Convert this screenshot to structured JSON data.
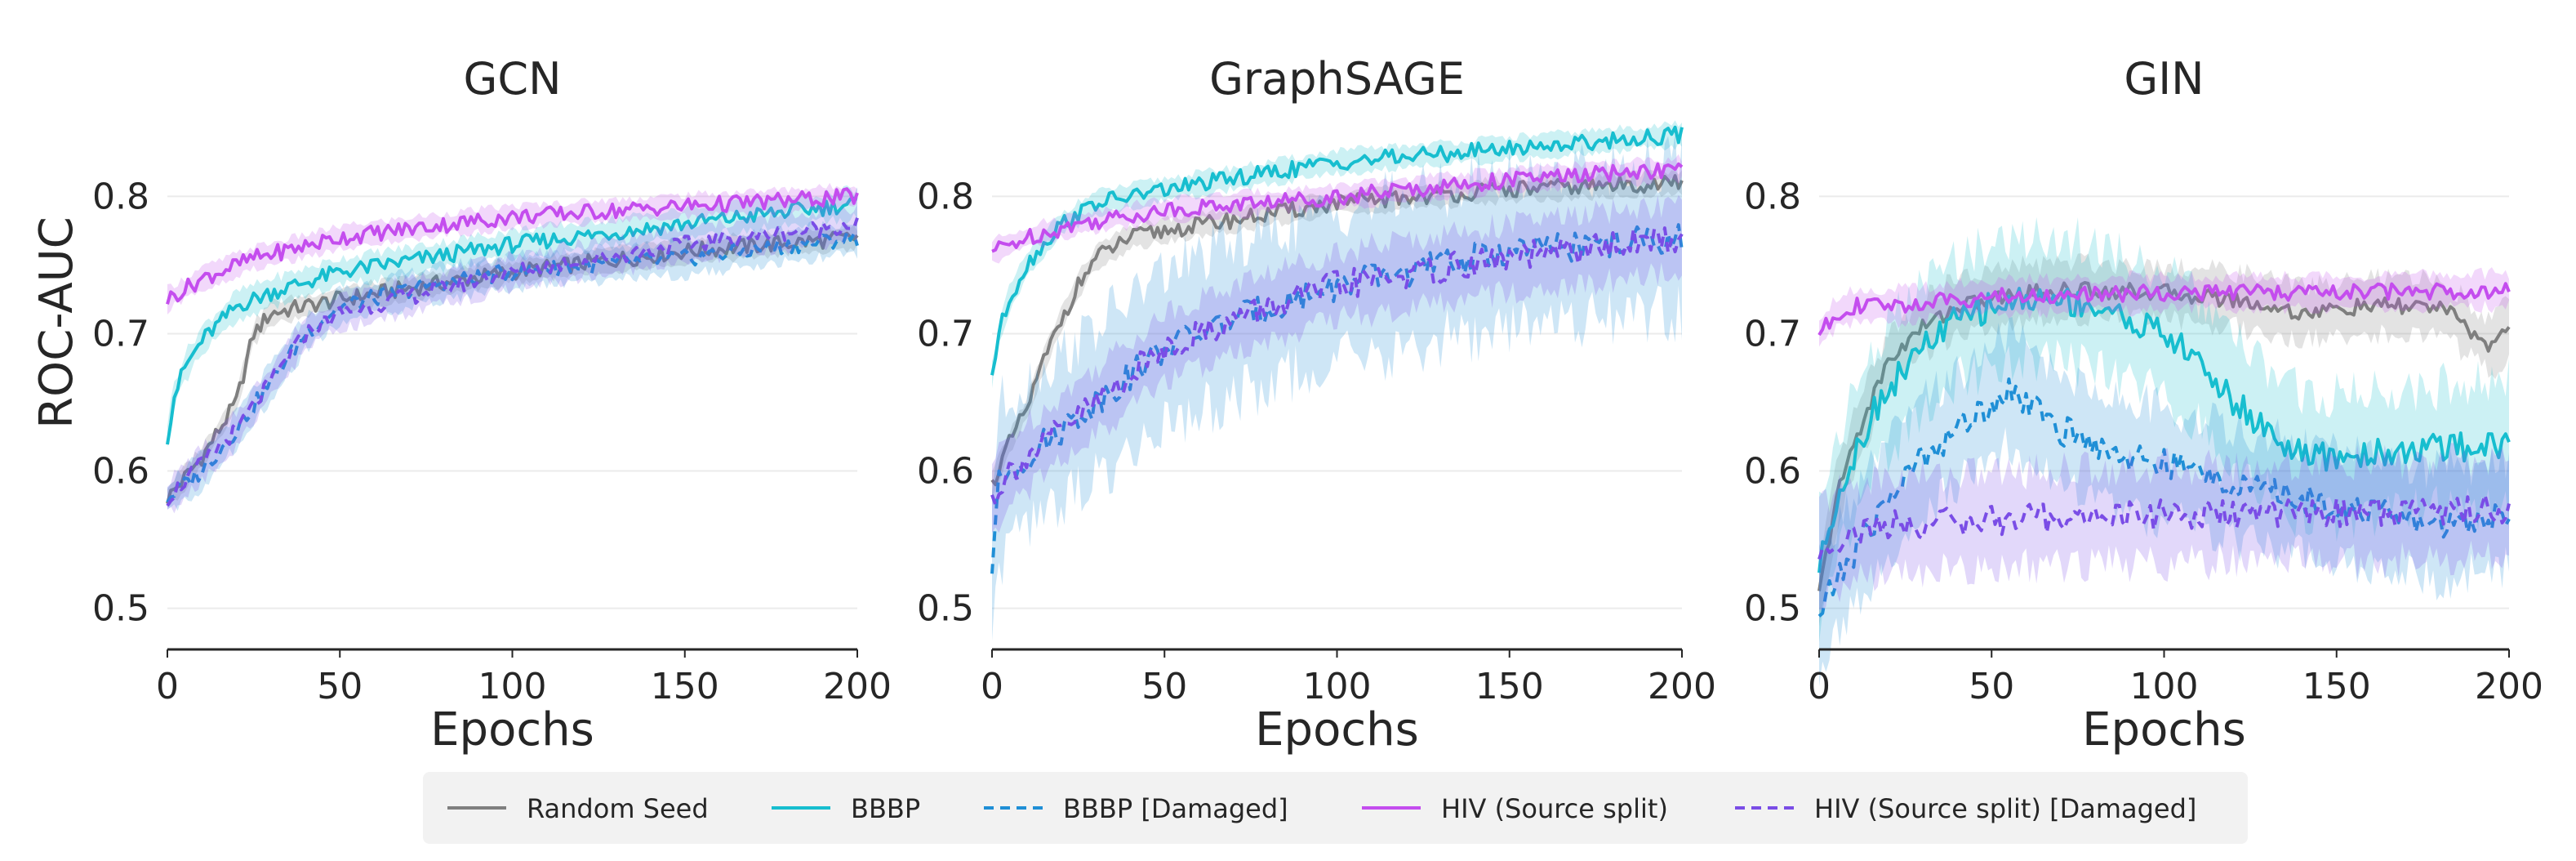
{
  "chart_data": {
    "type": "line",
    "legend": {
      "placement": "bottom-center",
      "entries": [
        {
          "label": "Random Seed",
          "color": "#7f7f7f",
          "dashed": false
        },
        {
          "label": "BBBP",
          "color": "#17becf",
          "dashed": false
        },
        {
          "label": "BBBP [Damaged]",
          "color": "#1f8fd6",
          "dashed": true
        },
        {
          "label": "HIV (Source split)",
          "color": "#c44dee",
          "dashed": false
        },
        {
          "label": "HIV (Source split) [Damaged]",
          "color": "#7a4de6",
          "dashed": true
        }
      ]
    },
    "ylabel": "ROC-AUC",
    "panels": [
      {
        "title": "GCN",
        "xlabel": "Epochs",
        "xlim": [
          0,
          200
        ],
        "ylim": [
          0.47,
          0.83
        ],
        "xticks": [
          "0",
          "50",
          "100",
          "150",
          "200"
        ],
        "yticks": [
          "0.5",
          "0.6",
          "0.7",
          "0.8"
        ],
        "series": [
          {
            "name": "Random Seed",
            "x": [
              0,
              10,
              20,
              25,
              30,
              50,
              75,
              100,
              150,
              200
            ],
            "y": [
              0.58,
              0.61,
              0.65,
              0.7,
              0.715,
              0.725,
              0.735,
              0.745,
              0.76,
              0.77
            ],
            "band": 0.008
          },
          {
            "name": "BBBP",
            "x": [
              0,
              2,
              5,
              10,
              20,
              30,
              50,
              75,
              100,
              150,
              200
            ],
            "y": [
              0.625,
              0.655,
              0.675,
              0.695,
              0.72,
              0.73,
              0.745,
              0.755,
              0.765,
              0.78,
              0.795
            ],
            "band": 0.01
          },
          {
            "name": "BBBP [Damaged]",
            "x": [
              0,
              10,
              20,
              30,
              40,
              50,
              75,
              100,
              150,
              200
            ],
            "y": [
              0.58,
              0.6,
              0.63,
              0.665,
              0.7,
              0.72,
              0.735,
              0.745,
              0.755,
              0.77
            ],
            "band": 0.012
          },
          {
            "name": "HIV (Source split)",
            "x": [
              0,
              10,
              25,
              50,
              75,
              100,
              150,
              200
            ],
            "y": [
              0.725,
              0.74,
              0.755,
              0.77,
              0.778,
              0.785,
              0.793,
              0.8
            ],
            "band": 0.008
          },
          {
            "name": "HIV (Source split) [Damaged]",
            "x": [
              0,
              10,
              20,
              30,
              40,
              50,
              75,
              100,
              150,
              200
            ],
            "y": [
              0.58,
              0.605,
              0.63,
              0.665,
              0.7,
              0.715,
              0.73,
              0.745,
              0.765,
              0.78
            ],
            "band": 0.012
          }
        ]
      },
      {
        "title": "GraphSAGE",
        "xlabel": "Epochs",
        "xlim": [
          0,
          200
        ],
        "ylim": [
          0.47,
          0.83
        ],
        "xticks": [
          "0",
          "50",
          "100",
          "150",
          "200"
        ],
        "yticks": [
          "0.5",
          "0.6",
          "0.7",
          "0.8"
        ],
        "series": [
          {
            "name": "Random Seed",
            "x": [
              0,
              5,
              10,
              15,
              20,
              25,
              30,
              40,
              50,
              75,
              100,
              150,
              200
            ],
            "y": [
              0.59,
              0.62,
              0.645,
              0.68,
              0.71,
              0.735,
              0.755,
              0.77,
              0.775,
              0.785,
              0.795,
              0.805,
              0.81
            ],
            "band": 0.008
          },
          {
            "name": "BBBP",
            "x": [
              0,
              2,
              5,
              10,
              20,
              30,
              50,
              75,
              100,
              150,
              200
            ],
            "y": [
              0.67,
              0.7,
              0.725,
              0.75,
              0.78,
              0.795,
              0.805,
              0.815,
              0.825,
              0.835,
              0.845
            ],
            "band": 0.008
          },
          {
            "name": "BBBP [Damaged]",
            "x": [
              0,
              2,
              5,
              10,
              20,
              30,
              40,
              50,
              75,
              100,
              150,
              200
            ],
            "y": [
              0.53,
              0.59,
              0.6,
              0.61,
              0.63,
              0.65,
              0.67,
              0.69,
              0.715,
              0.735,
              0.76,
              0.77
            ],
            "band": 0.055
          },
          {
            "name": "HIV (Source split)",
            "x": [
              0,
              10,
              25,
              50,
              75,
              100,
              150,
              200
            ],
            "y": [
              0.76,
              0.77,
              0.78,
              0.79,
              0.795,
              0.8,
              0.812,
              0.82
            ],
            "band": 0.008
          },
          {
            "name": "HIV (Source split) [Damaged]",
            "x": [
              0,
              5,
              10,
              20,
              30,
              40,
              50,
              75,
              100,
              150,
              200
            ],
            "y": [
              0.58,
              0.6,
              0.61,
              0.63,
              0.65,
              0.67,
              0.69,
              0.715,
              0.735,
              0.755,
              0.77
            ],
            "band": 0.025
          }
        ]
      },
      {
        "title": "GIN",
        "xlabel": "Epochs",
        "xlim": [
          0,
          200
        ],
        "ylim": [
          0.47,
          0.83
        ],
        "xticks": [
          "0",
          "50",
          "100",
          "150",
          "200"
        ],
        "yticks": [
          "0.5",
          "0.6",
          "0.7",
          "0.8"
        ],
        "series": [
          {
            "name": "Random Seed",
            "x": [
              0,
              5,
              10,
              15,
              20,
              30,
              40,
              50,
              60,
              75,
              100,
              120,
              140,
              160,
              180,
              195,
              200
            ],
            "y": [
              0.51,
              0.58,
              0.62,
              0.65,
              0.68,
              0.705,
              0.72,
              0.725,
              0.73,
              0.732,
              0.73,
              0.725,
              0.715,
              0.72,
              0.72,
              0.69,
              0.705
            ],
            "band": 0.02
          },
          {
            "name": "BBBP",
            "x": [
              0,
              5,
              10,
              15,
              20,
              30,
              40,
              50,
              60,
              70,
              80,
              90,
              100,
              110,
              120,
              130,
              140,
              150,
              170,
              200
            ],
            "y": [
              0.53,
              0.58,
              0.61,
              0.64,
              0.66,
              0.69,
              0.71,
              0.72,
              0.725,
              0.725,
              0.72,
              0.71,
              0.7,
              0.68,
              0.65,
              0.63,
              0.61,
              0.61,
              0.615,
              0.62
            ],
            "band": 0.045
          },
          {
            "name": "BBBP [Damaged]",
            "x": [
              0,
              5,
              10,
              15,
              20,
              30,
              40,
              50,
              55,
              60,
              65,
              70,
              80,
              90,
              100,
              110,
              120,
              140,
              160,
              180,
              200
            ],
            "y": [
              0.495,
              0.52,
              0.54,
              0.56,
              0.58,
              0.61,
              0.63,
              0.65,
              0.66,
              0.65,
              0.64,
              0.63,
              0.62,
              0.61,
              0.605,
              0.6,
              0.59,
              0.58,
              0.57,
              0.56,
              0.57
            ],
            "band": 0.04
          },
          {
            "name": "HIV (Source split)",
            "x": [
              0,
              5,
              10,
              20,
              30,
              40,
              50,
              75,
              100,
              150,
              200
            ],
            "y": [
              0.7,
              0.715,
              0.72,
              0.72,
              0.722,
              0.725,
              0.727,
              0.728,
              0.73,
              0.73,
              0.732
            ],
            "band": 0.012
          },
          {
            "name": "HIV (Source split) [Damaged]",
            "x": [
              0,
              5,
              10,
              20,
              40,
              60,
              80,
              100,
              120,
              140,
              160,
              180,
              200
            ],
            "y": [
              0.54,
              0.55,
              0.555,
              0.56,
              0.563,
              0.565,
              0.567,
              0.568,
              0.568,
              0.57,
              0.57,
              0.572,
              0.573
            ],
            "band": 0.035
          }
        ]
      }
    ]
  }
}
